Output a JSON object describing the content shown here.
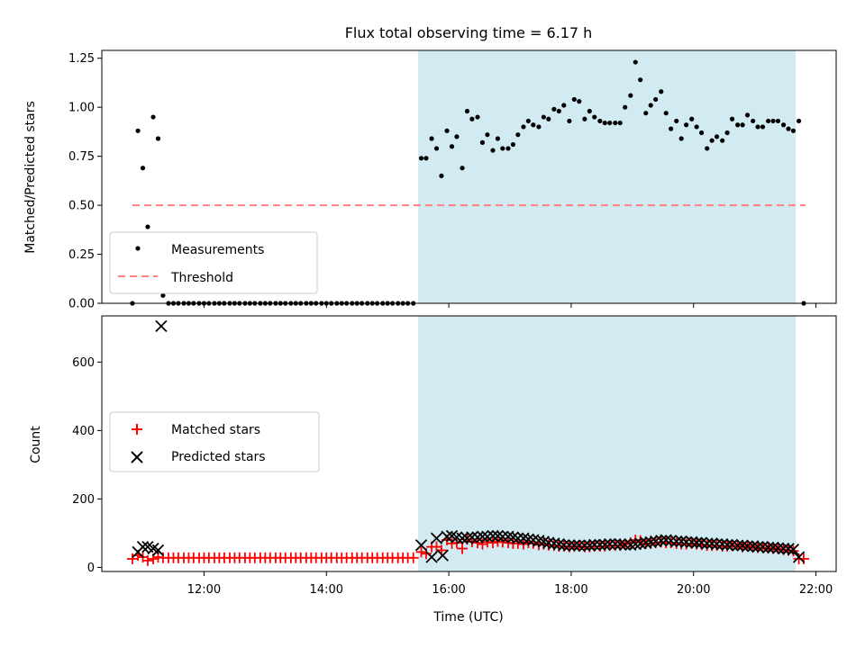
{
  "chart_data": [
    {
      "type": "scatter",
      "panel": "top",
      "title": "Flux total observing time = 6.17 h",
      "xlabel": "",
      "ylabel": "Matched/Predicted stars",
      "xlim": [
        10.33,
        22.33
      ],
      "ylim": [
        0.0,
        1.29
      ],
      "yticks": [
        0.0,
        0.25,
        0.5,
        0.75,
        1.0,
        1.25
      ],
      "ytick_labels": [
        "0.00",
        "0.25",
        "0.50",
        "0.75",
        "1.00",
        "1.25"
      ],
      "xticks": [
        12,
        14,
        16,
        18,
        20,
        22
      ],
      "shaded_region": [
        15.5,
        21.67
      ],
      "shaded_color": "#add8e6",
      "legend_position": "lower-left",
      "series": [
        {
          "name": "Measurements",
          "color": "#000000",
          "marker": "dot",
          "x": [
            10.83,
            10.92,
            11.0,
            11.08,
            11.17,
            11.25,
            11.33,
            11.42,
            11.5,
            11.58,
            11.67,
            11.75,
            11.83,
            11.92,
            12.0,
            12.08,
            12.17,
            12.25,
            12.33,
            12.42,
            12.5,
            12.58,
            12.67,
            12.75,
            12.83,
            12.92,
            13.0,
            13.08,
            13.17,
            13.25,
            13.33,
            13.42,
            13.5,
            13.58,
            13.67,
            13.75,
            13.83,
            13.92,
            14.0,
            14.08,
            14.17,
            14.25,
            14.33,
            14.42,
            14.5,
            14.58,
            14.67,
            14.75,
            14.83,
            14.92,
            15.0,
            15.08,
            15.17,
            15.25,
            15.33,
            15.42,
            15.55,
            15.63,
            15.72,
            15.8,
            15.88,
            15.97,
            16.05,
            16.13,
            16.22,
            16.3,
            16.38,
            16.47,
            16.55,
            16.63,
            16.72,
            16.8,
            16.88,
            16.97,
            17.05,
            17.13,
            17.22,
            17.3,
            17.38,
            17.47,
            17.55,
            17.63,
            17.72,
            17.8,
            17.88,
            17.97,
            18.05,
            18.13,
            18.22,
            18.3,
            18.38,
            18.47,
            18.55,
            18.63,
            18.72,
            18.8,
            18.88,
            18.97,
            19.05,
            19.13,
            19.22,
            19.3,
            19.38,
            19.47,
            19.55,
            19.63,
            19.72,
            19.8,
            19.88,
            19.97,
            20.05,
            20.13,
            20.22,
            20.3,
            20.38,
            20.47,
            20.55,
            20.63,
            20.72,
            20.8,
            20.88,
            20.97,
            21.05,
            21.13,
            21.22,
            21.3,
            21.38,
            21.47,
            21.55,
            21.63,
            21.72,
            21.8
          ],
          "y": [
            0.0,
            0.88,
            0.69,
            0.39,
            0.95,
            0.84,
            0.04,
            0.0,
            0.0,
            0.0,
            0.0,
            0.0,
            0.0,
            0.0,
            0.0,
            0.0,
            0.0,
            0.0,
            0.0,
            0.0,
            0.0,
            0.0,
            0.0,
            0.0,
            0.0,
            0.0,
            0.0,
            0.0,
            0.0,
            0.0,
            0.0,
            0.0,
            0.0,
            0.0,
            0.0,
            0.0,
            0.0,
            0.0,
            0.0,
            0.0,
            0.0,
            0.0,
            0.0,
            0.0,
            0.0,
            0.0,
            0.0,
            0.0,
            0.0,
            0.0,
            0.0,
            0.0,
            0.0,
            0.0,
            0.0,
            0.0,
            0.74,
            0.74,
            0.84,
            0.79,
            0.65,
            0.88,
            0.8,
            0.85,
            0.69,
            0.98,
            0.94,
            0.95,
            0.82,
            0.86,
            0.78,
            0.84,
            0.79,
            0.79,
            0.81,
            0.86,
            0.9,
            0.93,
            0.91,
            0.9,
            0.95,
            0.94,
            0.99,
            0.98,
            1.01,
            0.93,
            1.04,
            1.03,
            0.94,
            0.98,
            0.95,
            0.93,
            0.92,
            0.92,
            0.92,
            0.92,
            1.0,
            1.06,
            1.23,
            1.14,
            0.97,
            1.01,
            1.04,
            1.08,
            0.97,
            0.89,
            0.93,
            0.84,
            0.91,
            0.94,
            0.9,
            0.87,
            0.79,
            0.83,
            0.85,
            0.83,
            0.87,
            0.94,
            0.91,
            0.91,
            0.96,
            0.93,
            0.9,
            0.9,
            0.93,
            0.93,
            0.93,
            0.91,
            0.89,
            0.88,
            0.93,
            0.0
          ]
        },
        {
          "name": "Threshold",
          "color": "#ff7f7f",
          "marker": "dashed-line",
          "x": [
            10.83,
            21.83
          ],
          "y": [
            0.5,
            0.5
          ]
        }
      ]
    },
    {
      "type": "scatter",
      "panel": "bottom",
      "title": "",
      "xlabel": "Time (UTC)",
      "ylabel": "Count",
      "xlim": [
        10.33,
        22.33
      ],
      "ylim": [
        -12,
        735
      ],
      "yticks": [
        0,
        200,
        400,
        600
      ],
      "ytick_labels": [
        "0",
        "200",
        "400",
        "600"
      ],
      "xticks": [
        12,
        14,
        16,
        18,
        20,
        22
      ],
      "xtick_labels": [
        "12:00",
        "14:00",
        "16:00",
        "18:00",
        "20:00",
        "22:00"
      ],
      "shaded_region": [
        15.5,
        21.67
      ],
      "shaded_color": "#add8e6",
      "legend_position": "center-left",
      "series": [
        {
          "name": "Matched stars",
          "color": "#ff0000",
          "marker": "plus",
          "x": [
            10.83,
            10.92,
            11.0,
            11.08,
            11.17,
            11.25,
            11.33,
            11.42,
            11.5,
            11.58,
            11.67,
            11.75,
            11.83,
            11.92,
            12.0,
            12.08,
            12.17,
            12.25,
            12.33,
            12.42,
            12.5,
            12.58,
            12.67,
            12.75,
            12.83,
            12.92,
            13.0,
            13.08,
            13.17,
            13.25,
            13.33,
            13.42,
            13.5,
            13.58,
            13.67,
            13.75,
            13.83,
            13.92,
            14.0,
            14.08,
            14.17,
            14.25,
            14.33,
            14.42,
            14.5,
            14.58,
            14.67,
            14.75,
            14.83,
            14.92,
            15.0,
            15.08,
            15.17,
            15.25,
            15.33,
            15.42,
            15.55,
            15.63,
            15.72,
            15.8,
            15.88,
            15.97,
            16.05,
            16.13,
            16.22,
            16.3,
            16.38,
            16.47,
            16.55,
            16.63,
            16.72,
            16.8,
            16.88,
            16.97,
            17.05,
            17.13,
            17.22,
            17.3,
            17.38,
            17.47,
            17.55,
            17.63,
            17.72,
            17.8,
            17.88,
            17.97,
            18.05,
            18.13,
            18.22,
            18.3,
            18.38,
            18.47,
            18.55,
            18.63,
            18.72,
            18.8,
            18.88,
            18.97,
            19.05,
            19.13,
            19.22,
            19.3,
            19.38,
            19.47,
            19.55,
            19.63,
            19.72,
            19.8,
            19.88,
            19.97,
            20.05,
            20.13,
            20.22,
            20.3,
            20.38,
            20.47,
            20.55,
            20.63,
            20.72,
            20.8,
            20.88,
            20.97,
            21.05,
            21.13,
            21.22,
            21.3,
            21.38,
            21.47,
            21.55,
            21.63,
            21.72,
            21.8
          ],
          "y": [
            25,
            35,
            30,
            20,
            25,
            30,
            28,
            28,
            28,
            28,
            28,
            28,
            28,
            28,
            28,
            28,
            28,
            28,
            28,
            28,
            28,
            28,
            28,
            28,
            28,
            28,
            28,
            28,
            28,
            28,
            28,
            28,
            28,
            28,
            28,
            28,
            28,
            28,
            28,
            28,
            28,
            28,
            28,
            28,
            28,
            28,
            28,
            28,
            28,
            28,
            28,
            28,
            28,
            28,
            28,
            28,
            45,
            40,
            60,
            60,
            50,
            80,
            70,
            72,
            55,
            82,
            75,
            72,
            68,
            74,
            72,
            76,
            74,
            72,
            70,
            70,
            68,
            72,
            70,
            66,
            68,
            65,
            64,
            62,
            62,
            60,
            62,
            62,
            60,
            60,
            62,
            62,
            62,
            64,
            64,
            64,
            68,
            72,
            80,
            78,
            70,
            70,
            72,
            74,
            72,
            72,
            70,
            68,
            68,
            70,
            68,
            66,
            64,
            64,
            64,
            62,
            62,
            64,
            64,
            60,
            62,
            60,
            58,
            58,
            56,
            56,
            55,
            52,
            50,
            48,
            25,
            25
          ]
        },
        {
          "name": "Predicted stars",
          "color": "#000000",
          "marker": "x",
          "x": [
            10.92,
            11.0,
            11.08,
            11.17,
            11.25,
            11.3,
            15.55,
            15.72,
            15.8,
            15.9,
            15.97,
            16.05,
            16.13,
            16.22,
            16.3,
            16.38,
            16.47,
            16.55,
            16.63,
            16.72,
            16.8,
            16.88,
            16.97,
            17.05,
            17.13,
            17.22,
            17.3,
            17.38,
            17.47,
            17.55,
            17.63,
            17.72,
            17.8,
            17.88,
            17.97,
            18.05,
            18.13,
            18.22,
            18.3,
            18.38,
            18.47,
            18.55,
            18.63,
            18.72,
            18.8,
            18.88,
            18.97,
            19.05,
            19.13,
            19.22,
            19.3,
            19.38,
            19.47,
            19.55,
            19.63,
            19.72,
            19.8,
            19.88,
            19.97,
            20.05,
            20.13,
            20.22,
            20.3,
            20.38,
            20.47,
            20.55,
            20.63,
            20.72,
            20.8,
            20.88,
            20.97,
            21.05,
            21.13,
            21.22,
            21.3,
            21.38,
            21.47,
            21.55,
            21.63,
            21.72
          ],
          "y": [
            45,
            60,
            60,
            55,
            50,
            705,
            65,
            30,
            85,
            35,
            90,
            92,
            88,
            85,
            85,
            88,
            88,
            90,
            90,
            92,
            92,
            90,
            90,
            88,
            85,
            85,
            82,
            80,
            78,
            75,
            72,
            70,
            68,
            65,
            65,
            64,
            64,
            64,
            64,
            66,
            66,
            66,
            68,
            68,
            68,
            66,
            66,
            68,
            70,
            72,
            74,
            76,
            78,
            80,
            78,
            76,
            76,
            74,
            74,
            72,
            72,
            70,
            70,
            68,
            68,
            66,
            66,
            64,
            64,
            62,
            62,
            60,
            60,
            58,
            58,
            56,
            55,
            54,
            52,
            30
          ]
        }
      ]
    }
  ]
}
